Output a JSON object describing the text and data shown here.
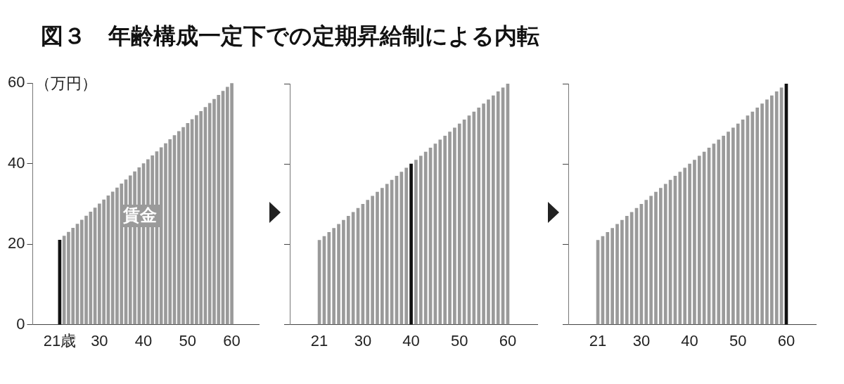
{
  "chart_data": [
    {
      "type": "bar",
      "title": "図３　年齢構成一定下での定期昇給制による内転",
      "ylabel": "（万円）",
      "annotations": [
        "賃金"
      ],
      "x": [
        21,
        22,
        23,
        24,
        25,
        26,
        27,
        28,
        29,
        30,
        31,
        32,
        33,
        34,
        35,
        36,
        37,
        38,
        39,
        40,
        41,
        42,
        43,
        44,
        45,
        46,
        47,
        48,
        49,
        50,
        51,
        52,
        53,
        54,
        55,
        56,
        57,
        58,
        59,
        60
      ],
      "values": [
        21,
        22,
        23,
        24,
        25,
        26,
        27,
        28,
        29,
        30,
        31,
        32,
        33,
        34,
        35,
        36,
        37,
        38,
        39,
        40,
        41,
        42,
        43,
        44,
        45,
        46,
        47,
        48,
        49,
        50,
        51,
        52,
        53,
        54,
        55,
        56,
        57,
        58,
        59,
        60
      ],
      "colors": [
        "#111111",
        "#9a9a9a",
        "#9a9a9a",
        "#9a9a9a",
        "#9a9a9a",
        "#9a9a9a",
        "#9a9a9a",
        "#9a9a9a",
        "#9a9a9a",
        "#9a9a9a",
        "#9a9a9a",
        "#9a9a9a",
        "#9a9a9a",
        "#9a9a9a",
        "#9a9a9a",
        "#9a9a9a",
        "#9a9a9a",
        "#9a9a9a",
        "#9a9a9a",
        "#9a9a9a",
        "#9a9a9a",
        "#9a9a9a",
        "#9a9a9a",
        "#9a9a9a",
        "#9a9a9a",
        "#9a9a9a",
        "#9a9a9a",
        "#9a9a9a",
        "#9a9a9a",
        "#9a9a9a",
        "#9a9a9a",
        "#9a9a9a",
        "#9a9a9a",
        "#9a9a9a",
        "#9a9a9a",
        "#9a9a9a",
        "#9a9a9a",
        "#9a9a9a",
        "#9a9a9a",
        "#9a9a9a"
      ],
      "xlim": [
        20,
        61
      ],
      "xticks": [
        {
          "value": 21,
          "label": "21歳"
        },
        30,
        40,
        50,
        60
      ],
      "ylim": [
        0,
        60
      ],
      "yticks": [
        0,
        20,
        40,
        60
      ],
      "grid": false,
      "legend": false
    },
    {
      "type": "bar",
      "x": [
        21,
        22,
        23,
        24,
        25,
        26,
        27,
        28,
        29,
        30,
        31,
        32,
        33,
        34,
        35,
        36,
        37,
        38,
        39,
        40,
        41,
        42,
        43,
        44,
        45,
        46,
        47,
        48,
        49,
        50,
        51,
        52,
        53,
        54,
        55,
        56,
        57,
        58,
        59,
        60
      ],
      "values": [
        21,
        22,
        23,
        24,
        25,
        26,
        27,
        28,
        29,
        30,
        31,
        32,
        33,
        34,
        35,
        36,
        37,
        38,
        39,
        40,
        41,
        42,
        43,
        44,
        45,
        46,
        47,
        48,
        49,
        50,
        51,
        52,
        53,
        54,
        55,
        56,
        57,
        58,
        59,
        60
      ],
      "colors": [
        "#9a9a9a",
        "#9a9a9a",
        "#9a9a9a",
        "#9a9a9a",
        "#9a9a9a",
        "#9a9a9a",
        "#9a9a9a",
        "#9a9a9a",
        "#9a9a9a",
        "#9a9a9a",
        "#9a9a9a",
        "#9a9a9a",
        "#9a9a9a",
        "#9a9a9a",
        "#9a9a9a",
        "#9a9a9a",
        "#9a9a9a",
        "#9a9a9a",
        "#9a9a9a",
        "#111111",
        "#9a9a9a",
        "#9a9a9a",
        "#9a9a9a",
        "#9a9a9a",
        "#9a9a9a",
        "#9a9a9a",
        "#9a9a9a",
        "#9a9a9a",
        "#9a9a9a",
        "#9a9a9a",
        "#9a9a9a",
        "#9a9a9a",
        "#9a9a9a",
        "#9a9a9a",
        "#9a9a9a",
        "#9a9a9a",
        "#9a9a9a",
        "#9a9a9a",
        "#9a9a9a",
        "#9a9a9a"
      ],
      "xlim": [
        20,
        61
      ],
      "xticks": [
        21,
        30,
        40,
        50,
        60
      ],
      "ylim": [
        0,
        60
      ],
      "yticks": [
        0,
        20,
        40,
        60
      ],
      "tick_labels": "x",
      "grid": false,
      "legend": false
    },
    {
      "type": "bar",
      "x": [
        21,
        22,
        23,
        24,
        25,
        26,
        27,
        28,
        29,
        30,
        31,
        32,
        33,
        34,
        35,
        36,
        37,
        38,
        39,
        40,
        41,
        42,
        43,
        44,
        45,
        46,
        47,
        48,
        49,
        50,
        51,
        52,
        53,
        54,
        55,
        56,
        57,
        58,
        59,
        60
      ],
      "values": [
        21,
        22,
        23,
        24,
        25,
        26,
        27,
        28,
        29,
        30,
        31,
        32,
        33,
        34,
        35,
        36,
        37,
        38,
        39,
        40,
        41,
        42,
        43,
        44,
        45,
        46,
        47,
        48,
        49,
        50,
        51,
        52,
        53,
        54,
        55,
        56,
        57,
        58,
        59,
        60
      ],
      "colors": [
        "#9a9a9a",
        "#9a9a9a",
        "#9a9a9a",
        "#9a9a9a",
        "#9a9a9a",
        "#9a9a9a",
        "#9a9a9a",
        "#9a9a9a",
        "#9a9a9a",
        "#9a9a9a",
        "#9a9a9a",
        "#9a9a9a",
        "#9a9a9a",
        "#9a9a9a",
        "#9a9a9a",
        "#9a9a9a",
        "#9a9a9a",
        "#9a9a9a",
        "#9a9a9a",
        "#9a9a9a",
        "#9a9a9a",
        "#9a9a9a",
        "#9a9a9a",
        "#9a9a9a",
        "#9a9a9a",
        "#9a9a9a",
        "#9a9a9a",
        "#9a9a9a",
        "#9a9a9a",
        "#9a9a9a",
        "#9a9a9a",
        "#9a9a9a",
        "#9a9a9a",
        "#9a9a9a",
        "#9a9a9a",
        "#9a9a9a",
        "#9a9a9a",
        "#9a9a9a",
        "#9a9a9a",
        "#111111"
      ],
      "xlim": [
        20,
        61
      ],
      "xticks": [
        21,
        30,
        40,
        50,
        60
      ],
      "ylim": [
        0,
        60
      ],
      "yticks": [
        0,
        20,
        40,
        60
      ],
      "tick_labels": "x",
      "grid": false,
      "legend": false
    }
  ]
}
